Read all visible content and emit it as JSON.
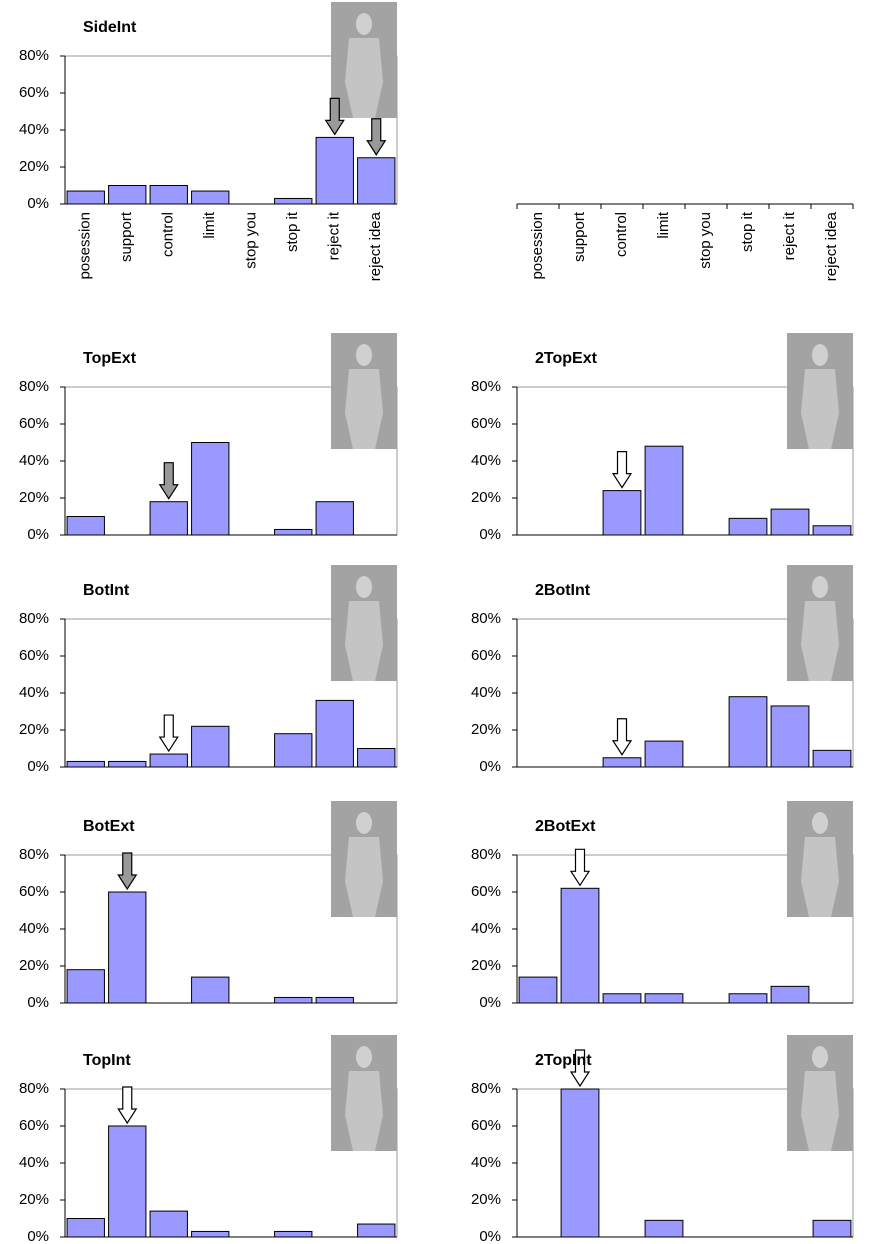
{
  "chart_data": [
    {
      "type": "bar",
      "title": "SideInt",
      "categories": [
        "posession",
        "support",
        "control",
        "limit",
        "stop you",
        "stop it",
        "reject it",
        "reject idea"
      ],
      "values": [
        7,
        10,
        10,
        7,
        0,
        3,
        36,
        25
      ],
      "color": "#9999ff",
      "ylim": [
        0,
        80
      ],
      "yticks": [
        {
          "value": 0,
          "label": "0%"
        },
        {
          "value": 20,
          "label": "20%"
        },
        {
          "value": 40,
          "label": "40%"
        },
        {
          "value": 60,
          "label": "60%"
        },
        {
          "value": 80,
          "label": "80%"
        }
      ],
      "arrows": [
        {
          "at": 6,
          "color": "#999999"
        },
        {
          "at": 7,
          "color": "#999999"
        }
      ]
    },
    {
      "type": "bar",
      "categories": [
        "posession",
        "support",
        "control",
        "limit",
        "stop you",
        "stop it",
        "reject it",
        "reject idea"
      ]
    },
    {
      "type": "bar",
      "title": "TopExt",
      "values": [
        10,
        0,
        18,
        50,
        0,
        3,
        18,
        0
      ],
      "color": "#9999ff",
      "ylim": [
        0,
        80
      ],
      "yticks": [
        {
          "value": 0,
          "label": "0%"
        },
        {
          "value": 20,
          "label": "20%"
        },
        {
          "value": 40,
          "label": "40%"
        },
        {
          "value": 60,
          "label": "60%"
        },
        {
          "value": 80,
          "label": "80%"
        }
      ],
      "arrows": [
        {
          "at": 2,
          "color": "#999999"
        }
      ]
    },
    {
      "type": "bar",
      "title": "2TopExt",
      "values": [
        0,
        0,
        24,
        48,
        0,
        9,
        14,
        5
      ],
      "color": "#9999ff",
      "ylim": [
        0,
        80
      ],
      "yticks": [
        {
          "value": 0,
          "label": "0%"
        },
        {
          "value": 20,
          "label": "20%"
        },
        {
          "value": 40,
          "label": "40%"
        },
        {
          "value": 60,
          "label": "60%"
        },
        {
          "value": 80,
          "label": "80%"
        }
      ],
      "arrows": [
        {
          "at": 2,
          "color": "#ffffff"
        }
      ]
    },
    {
      "type": "bar",
      "title": "BotInt",
      "values": [
        3,
        3,
        7,
        22,
        0,
        18,
        36,
        10
      ],
      "color": "#9999ff",
      "ylim": [
        0,
        80
      ],
      "yticks": [
        {
          "value": 0,
          "label": "0%"
        },
        {
          "value": 20,
          "label": "20%"
        },
        {
          "value": 40,
          "label": "40%"
        },
        {
          "value": 60,
          "label": "60%"
        },
        {
          "value": 80,
          "label": "80%"
        }
      ],
      "arrows": [
        {
          "at": 2,
          "color": "#ffffff"
        }
      ]
    },
    {
      "type": "bar",
      "title": "2BotInt",
      "values": [
        0,
        0,
        5,
        14,
        0,
        38,
        33,
        9
      ],
      "color": "#9999ff",
      "ylim": [
        0,
        80
      ],
      "yticks": [
        {
          "value": 0,
          "label": "0%"
        },
        {
          "value": 20,
          "label": "20%"
        },
        {
          "value": 40,
          "label": "40%"
        },
        {
          "value": 60,
          "label": "60%"
        },
        {
          "value": 80,
          "label": "80%"
        }
      ],
      "arrows": [
        {
          "at": 2,
          "color": "#ffffff"
        }
      ]
    },
    {
      "type": "bar",
      "title": "BotExt",
      "values": [
        18,
        60,
        0,
        14,
        0,
        3,
        3,
        0
      ],
      "color": "#9999ff",
      "ylim": [
        0,
        80
      ],
      "yticks": [
        {
          "value": 0,
          "label": "0%"
        },
        {
          "value": 20,
          "label": "20%"
        },
        {
          "value": 40,
          "label": "40%"
        },
        {
          "value": 60,
          "label": "60%"
        },
        {
          "value": 80,
          "label": "80%"
        }
      ],
      "arrows": [
        {
          "at": 1,
          "color": "#999999"
        }
      ]
    },
    {
      "type": "bar",
      "title": "2BotExt",
      "values": [
        14,
        62,
        5,
        5,
        0,
        5,
        9,
        0
      ],
      "color": "#9999ff",
      "ylim": [
        0,
        80
      ],
      "yticks": [
        {
          "value": 0,
          "label": "0%"
        },
        {
          "value": 20,
          "label": "20%"
        },
        {
          "value": 40,
          "label": "40%"
        },
        {
          "value": 60,
          "label": "60%"
        },
        {
          "value": 80,
          "label": "80%"
        }
      ],
      "arrows": [
        {
          "at": 1,
          "color": "#ffffff"
        }
      ]
    },
    {
      "type": "bar",
      "title": "TopInt",
      "values": [
        10,
        60,
        14,
        3,
        0,
        3,
        0,
        7
      ],
      "color": "#9999ff",
      "ylim": [
        0,
        80
      ],
      "yticks": [
        {
          "value": 0,
          "label": "0%"
        },
        {
          "value": 20,
          "label": "20%"
        },
        {
          "value": 40,
          "label": "40%"
        },
        {
          "value": 60,
          "label": "60%"
        },
        {
          "value": 80,
          "label": "80%"
        }
      ],
      "arrows": [
        {
          "at": 1,
          "color": "#ffffff"
        }
      ]
    },
    {
      "type": "bar",
      "title": "2TopInt",
      "values": [
        0,
        80,
        0,
        9,
        0,
        0,
        0,
        9
      ],
      "color": "#9999ff",
      "ylim": [
        0,
        80
      ],
      "yticks": [
        {
          "value": 0,
          "label": "0%"
        },
        {
          "value": 20,
          "label": "20%"
        },
        {
          "value": 40,
          "label": "40%"
        },
        {
          "value": 60,
          "label": "60%"
        },
        {
          "value": 80,
          "label": "80%"
        }
      ],
      "arrows": [
        {
          "at": 1,
          "color": "#ffffff"
        }
      ]
    }
  ]
}
